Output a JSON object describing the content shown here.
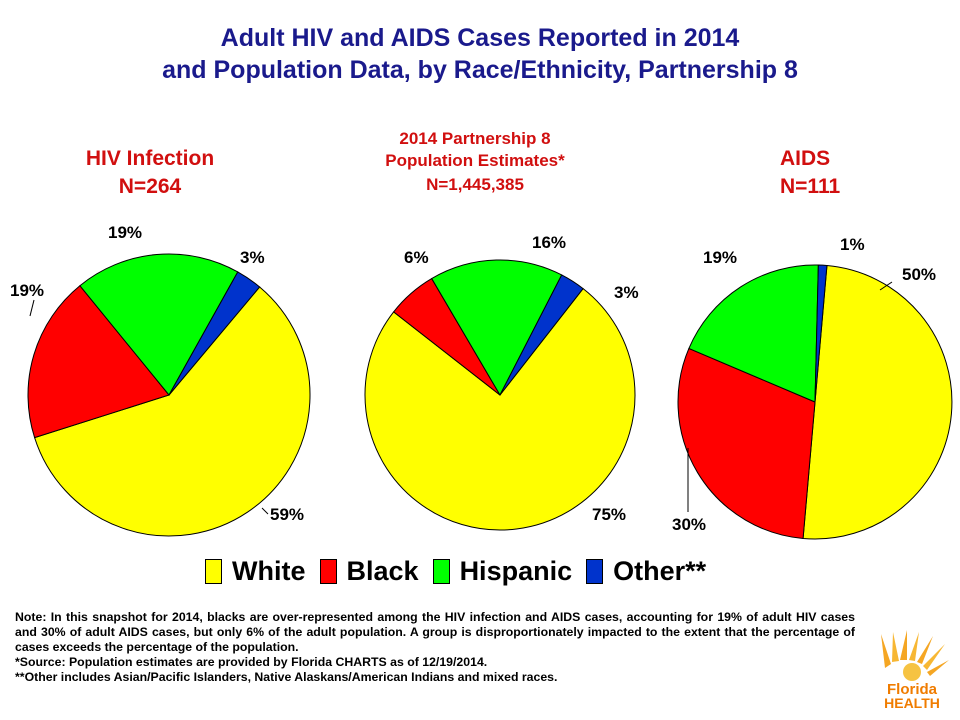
{
  "header": {
    "title_line1": "Adult HIV and AIDS Cases Reported in 2014",
    "title_line2": "and Population Data, by Race/Ethnicity, Partnership 8"
  },
  "colors": {
    "White": "#ffff00",
    "Black": "#ff0000",
    "Hispanic": "#00ff00",
    "Other": "#0033cc",
    "title": "#1a1a8c",
    "subtitle": "#d10f0f"
  },
  "chart_data": [
    {
      "type": "pie",
      "title": "HIV Infection",
      "subtitle": "N=264",
      "categories": [
        "White",
        "Black",
        "Hispanic",
        "Other**"
      ],
      "values": [
        59,
        19,
        19,
        3
      ],
      "labels": [
        "59%",
        "19%",
        "19%",
        "3%"
      ]
    },
    {
      "type": "pie",
      "title": "2014 Partnership 8",
      "title_line2": "Population Estimates*",
      "subtitle": "N=1,445,385",
      "categories": [
        "White",
        "Black",
        "Hispanic",
        "Other**"
      ],
      "values": [
        75,
        6,
        16,
        3
      ],
      "labels": [
        "75%",
        "6%",
        "16%",
        "3%"
      ]
    },
    {
      "type": "pie",
      "title": "AIDS",
      "subtitle": "N=111",
      "categories": [
        "White",
        "Black",
        "Hispanic",
        "Other**"
      ],
      "values": [
        50,
        30,
        19,
        1
      ],
      "labels": [
        "50%",
        "30%",
        "19%",
        "1%"
      ]
    }
  ],
  "legend": {
    "items": [
      {
        "label": "White",
        "color": "#ffff00"
      },
      {
        "label": "Black",
        "color": "#ff0000"
      },
      {
        "label": "Hispanic",
        "color": "#00ff00"
      },
      {
        "label": "Other**",
        "color": "#0033cc"
      }
    ]
  },
  "notes": {
    "note": "Note:  In this snapshot for 2014, blacks are over-represented among the HIV infection and AIDS cases, accounting for 19% of adult HIV cases and 30% of adult AIDS cases, but only 6% of the adult population.  A group is disproportionately impacted to the extent that the percentage of cases exceeds the percentage of the population.",
    "source": "*Source: Population estimates are provided by Florida CHARTS as of 12/19/2014.",
    "other": "**Other includes Asian/Pacific Islanders, Native Alaskans/American Indians and mixed races."
  },
  "logo": {
    "line1": "Florida",
    "line2": "HEALTH"
  }
}
